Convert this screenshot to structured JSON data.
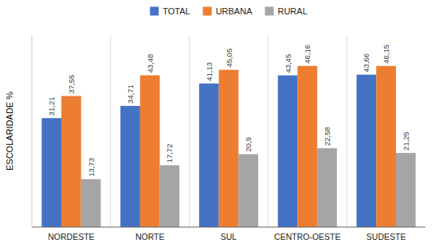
{
  "chart_data": {
    "type": "bar",
    "y_label": "ESCOLARIDADE %",
    "categories": [
      "NORDESTE",
      "NORTE",
      "SUL",
      "CENTRO-OESTE",
      "SUDESTE"
    ],
    "series": [
      {
        "name": "TOTAL",
        "color": "#4472C4",
        "values": [
          31.21,
          34.71,
          41.13,
          43.45,
          43.66
        ],
        "value_labels": [
          "31,21",
          "34,71",
          "41,13",
          "43,45",
          "43,66"
        ]
      },
      {
        "name": "URBANA",
        "color": "#ED7D31",
        "values": [
          37.55,
          43.48,
          45.05,
          46.16,
          46.15
        ],
        "value_labels": [
          "37,55",
          "43,48",
          "45,05",
          "46,16",
          "46,15"
        ]
      },
      {
        "name": "RURAL",
        "color": "#A5A5A5",
        "values": [
          13.73,
          17.72,
          20.9,
          22.58,
          21.25
        ],
        "value_labels": [
          "13,73",
          "17,72",
          "20,9",
          "22,58",
          "21,25"
        ]
      }
    ],
    "ylim": [
      0,
      55
    ],
    "data_labels": true,
    "tick_labels": "x",
    "legend": "top"
  }
}
